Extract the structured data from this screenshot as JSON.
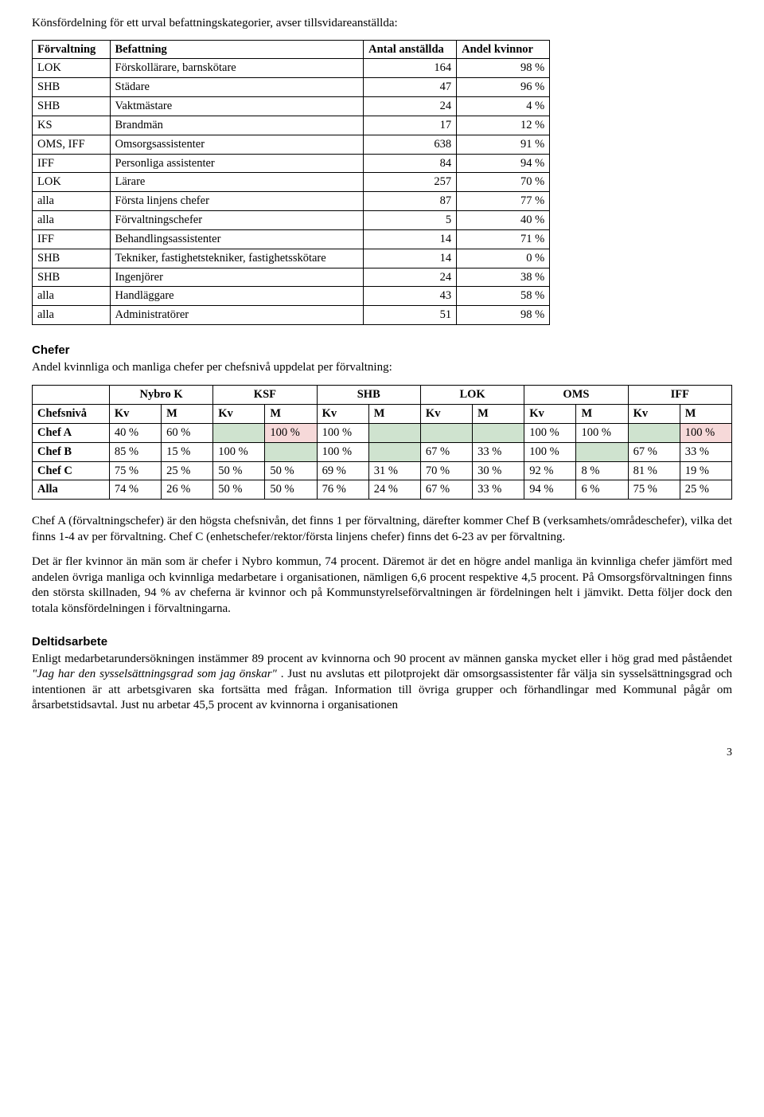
{
  "intro": "Könsfördelning för ett urval befattningskategorier, avser tillsvidareanställda:",
  "table1": {
    "headers": [
      "Förvaltning",
      "Befattning",
      "Antal anställda",
      "Andel kvinnor"
    ],
    "rows": [
      [
        "LOK",
        "Förskollärare, barnskötare",
        "164",
        "98 %"
      ],
      [
        "SHB",
        "Städare",
        "47",
        "96 %"
      ],
      [
        "SHB",
        "Vaktmästare",
        "24",
        "4 %"
      ],
      [
        "KS",
        "Brandmän",
        "17",
        "12 %"
      ],
      [
        "OMS, IFF",
        "Omsorgsassistenter",
        "638",
        "91 %"
      ],
      [
        "IFF",
        "Personliga assistenter",
        "84",
        "94 %"
      ],
      [
        "LOK",
        "Lärare",
        "257",
        "70 %"
      ],
      [
        "alla",
        "Första linjens chefer",
        "87",
        "77 %"
      ],
      [
        "alla",
        "Förvaltningschefer",
        "5",
        "40 %"
      ],
      [
        "IFF",
        "Behandlingsassistenter",
        "14",
        "71 %"
      ],
      [
        "SHB",
        "Tekniker, fastighetstekniker, fastighetsskötare",
        "14",
        "0 %"
      ],
      [
        "SHB",
        "Ingenjörer",
        "24",
        "38 %"
      ],
      [
        "alla",
        "Handläggare",
        "43",
        "58 %"
      ],
      [
        "alla",
        "Administratörer",
        "51",
        "98 %"
      ]
    ]
  },
  "chefer": {
    "heading": "Chefer",
    "subline": "Andel kvinnliga och manliga chefer per chefsnivå uppdelat per förvaltning:",
    "groupHeaders": [
      "",
      "Nybro K",
      "KSF",
      "SHB",
      "LOK",
      "OMS",
      "IFF"
    ],
    "subHeaders": [
      "Chefsnivå",
      "Kv",
      "M",
      "Kv",
      "M",
      "Kv",
      "M",
      "Kv",
      "M",
      "Kv",
      "M",
      "Kv",
      "M"
    ],
    "rows": [
      {
        "label": "Chef A",
        "cells": [
          "40 %",
          "60 %",
          "",
          "100 %",
          "100 %",
          "",
          "",
          "",
          "100 %",
          "100 %",
          "",
          "100 %"
        ],
        "fill": [
          "",
          "",
          "green",
          "pink",
          "",
          "green",
          "green",
          "green",
          "",
          "",
          "green",
          "pink"
        ]
      },
      {
        "label": "Chef B",
        "cells": [
          "85 %",
          "15 %",
          "100 %",
          "",
          "100 %",
          "",
          "67 %",
          "33 %",
          "100 %",
          "",
          "67 %",
          "33 %"
        ],
        "fill": [
          "",
          "",
          "",
          "green",
          "",
          "green",
          "",
          "",
          "",
          "green",
          "",
          ""
        ]
      },
      {
        "label": "Chef C",
        "cells": [
          "75 %",
          "25 %",
          "50 %",
          "50 %",
          "69 %",
          "31 %",
          "70 %",
          "30 %",
          "92 %",
          "8 %",
          "81 %",
          "19 %"
        ],
        "fill": [
          "",
          "",
          "",
          "",
          "",
          "",
          "",
          "",
          "",
          "",
          "",
          ""
        ]
      },
      {
        "label": "Alla",
        "cells": [
          "74 %",
          "26 %",
          "50 %",
          "50 %",
          "76 %",
          "24 %",
          "67 %",
          "33 %",
          "94 %",
          "6 %",
          "75 %",
          "25 %"
        ],
        "fill": [
          "",
          "",
          "",
          "",
          "",
          "",
          "",
          "",
          "",
          "",
          "",
          ""
        ]
      }
    ]
  },
  "para1_a": "Chef A (förvaltningschefer) är den högsta chefsnivån, det finns 1 per förvaltning, därefter kommer Chef B (verksamhets/områdeschefer), vilka det finns 1-4 av per förvaltning. Chef C (enhetschefer/rektor/första linjens chefer) finns det 6-23 av per förvaltning.",
  "para2_a": "Det är fler kvinnor än män som är chefer i Nybro kommun, 74 procent. Däremot är det en högre andel manliga än kvinnliga chefer jämfört med andelen övriga manliga och kvinnliga medarbetare i organisationen, nämligen 6,6 procent respektive 4,5 procent. På Omsorgsförvaltningen finns den största skillnaden, 94 % av cheferna är kvinnor och på Kommunstyrelseförvaltningen är fördelningen helt i jämvikt. Detta följer dock den totala könsfördelningen i förvaltningarna.",
  "deltid": {
    "heading": "Deltidsarbete",
    "para_pre": "Enligt medarbetarundersökningen instämmer 89 procent av kvinnorna och 90 procent av männen ganska mycket eller i hög grad med påståendet ",
    "para_italic": "\"Jag har den sysselsättningsgrad som jag önskar\"",
    "para_post": ". Just nu avslutas ett pilotprojekt där omsorgsassistenter får välja sin sysselsättningsgrad och intentionen är att arbetsgivaren ska fortsätta med frågan. Information till övriga grupper och förhandlingar med Kommunal pågår om årsarbetstidsavtal. Just nu arbetar 45,5 procent av kvinnorna i organisationen"
  },
  "pageNumber": "3"
}
